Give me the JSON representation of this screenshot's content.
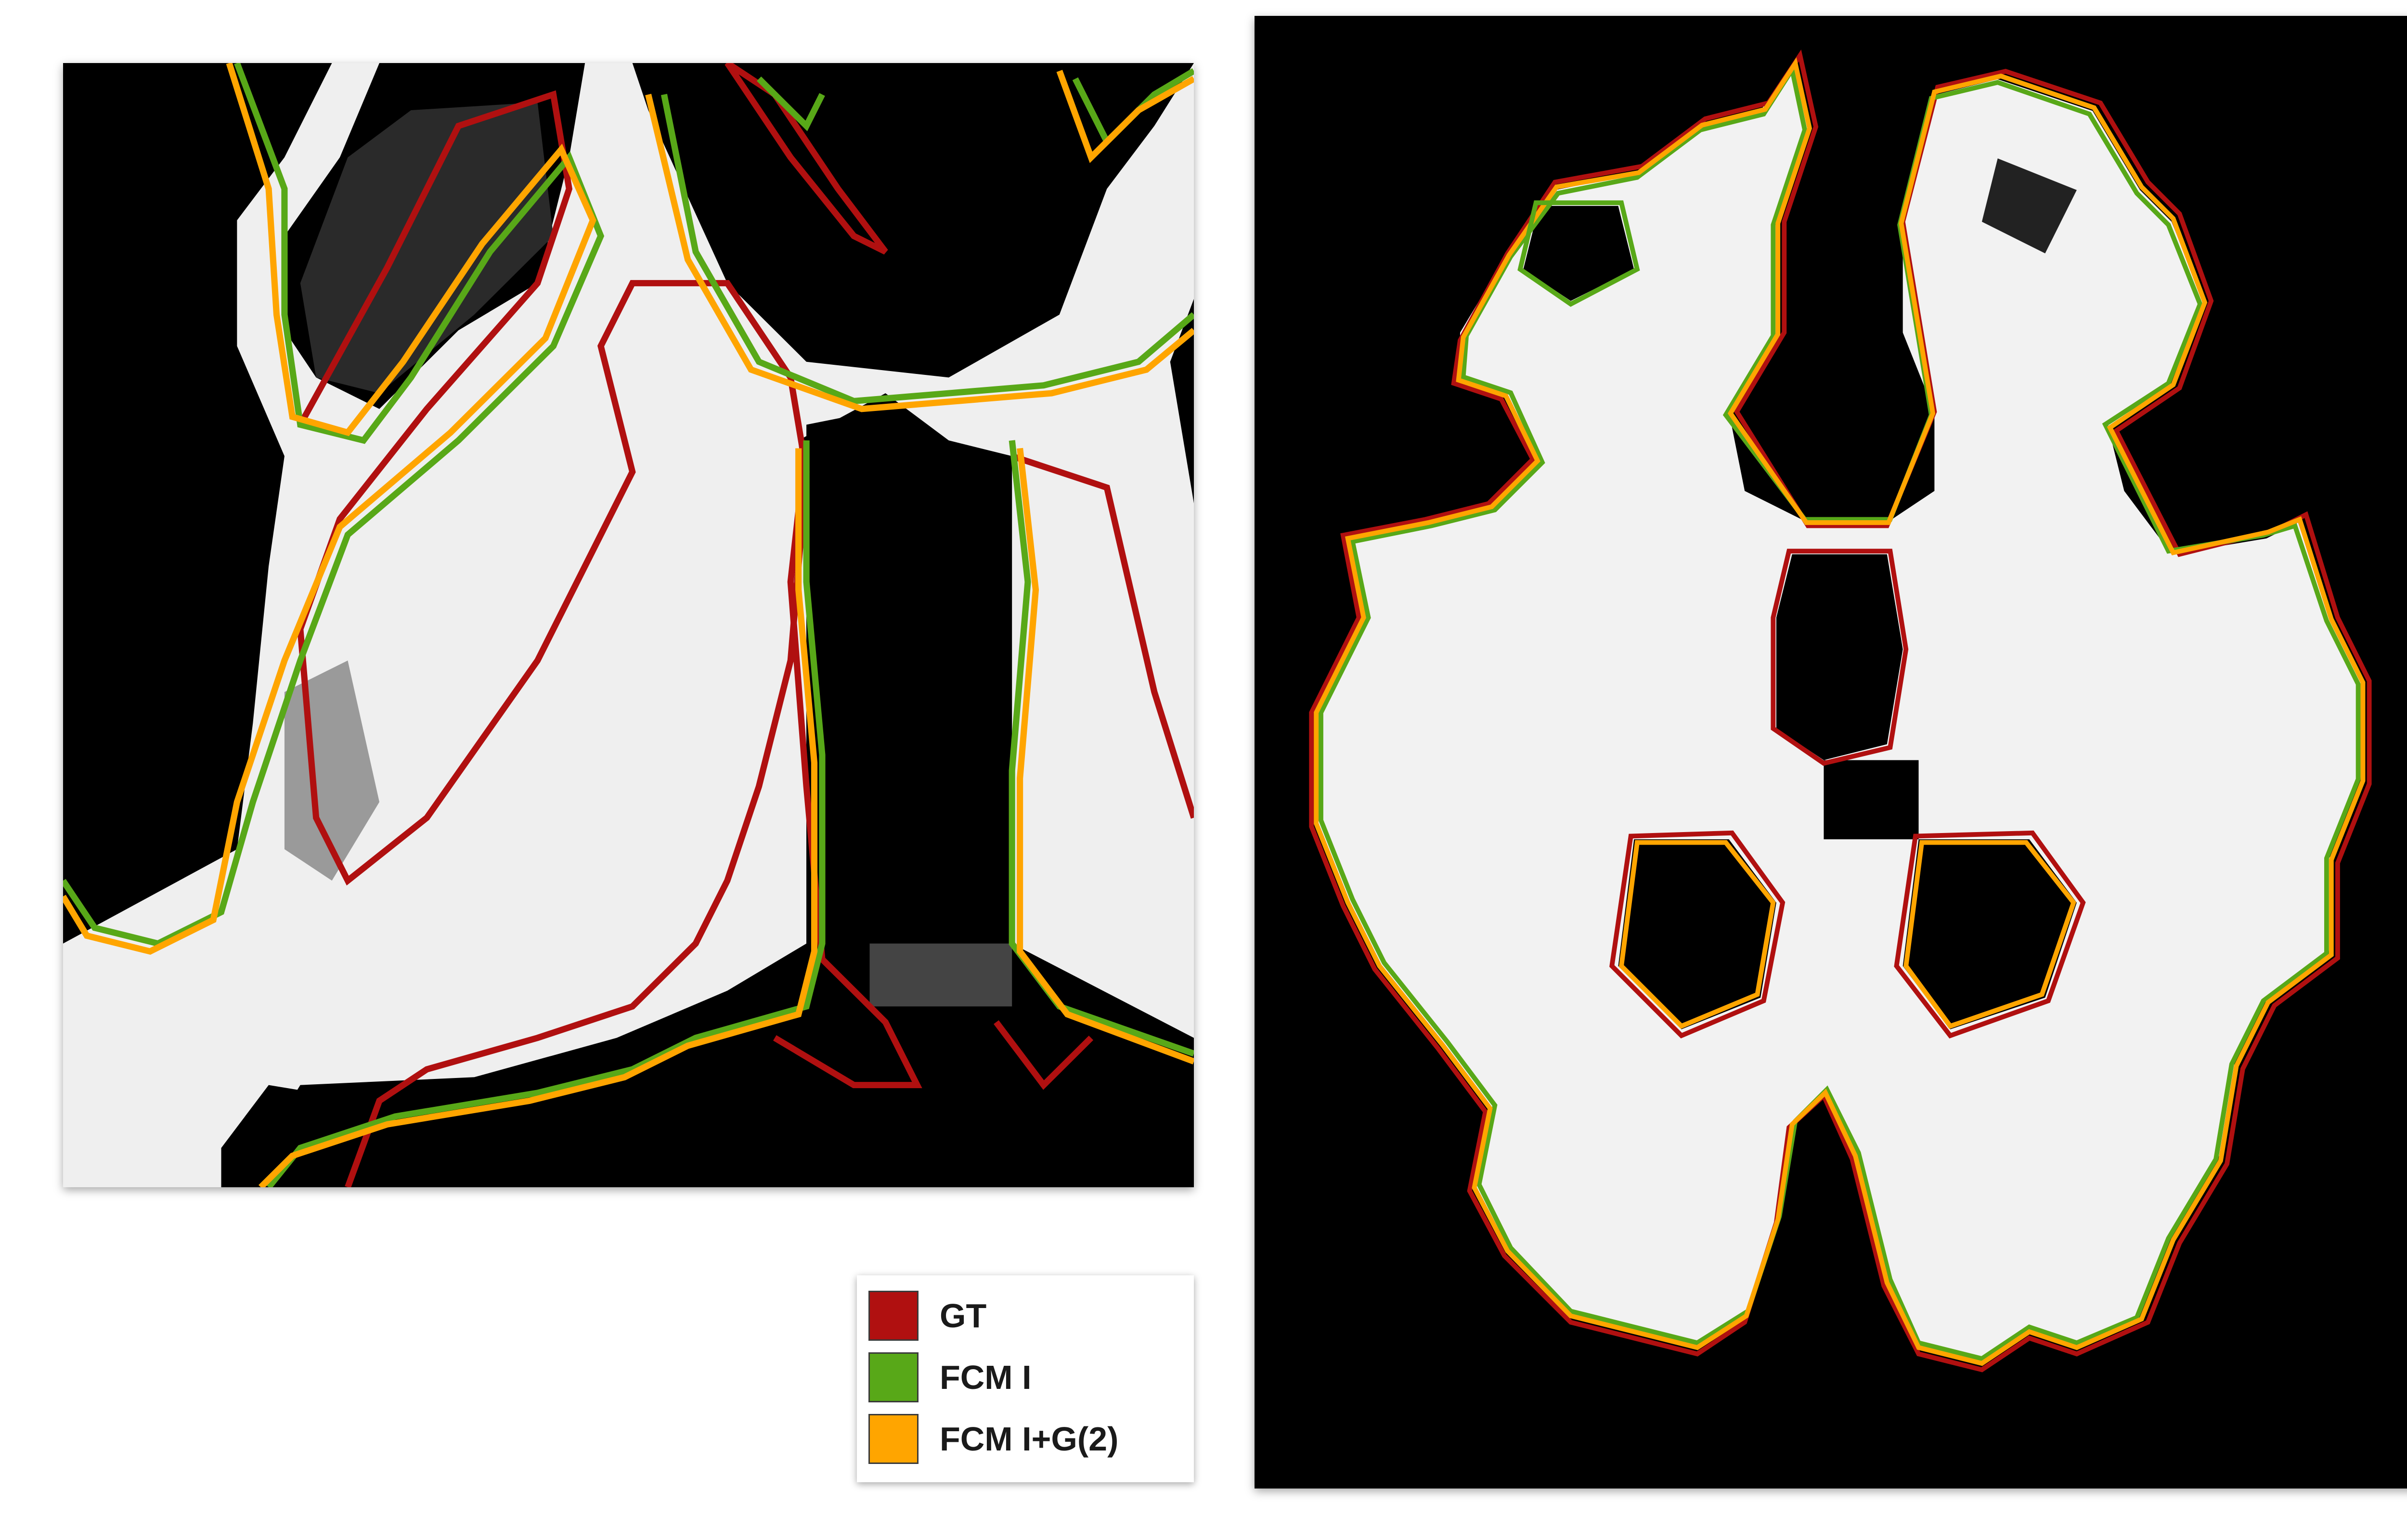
{
  "figure": {
    "panels": [
      {
        "id": "zoomed-region"
      },
      {
        "id": "full-axial-slice"
      }
    ],
    "legend": {
      "items": [
        {
          "label": "GT",
          "color": "#b01010"
        },
        {
          "label": "FCM I",
          "color": "#58a818"
        },
        {
          "label": "FCM I+G(2)",
          "color": "#ffa500"
        }
      ]
    },
    "colors": {
      "background": "#000000",
      "tissue": "#f2f2f2",
      "gt": "#b01010",
      "fcm_i": "#58a818",
      "fcm_ig2": "#ffa500"
    }
  }
}
